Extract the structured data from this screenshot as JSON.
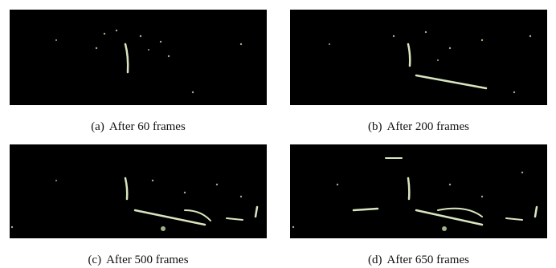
{
  "subfigures": [
    {
      "label": "(a)",
      "caption": "After 60 frames"
    },
    {
      "label": "(b)",
      "caption": "After 200 frames"
    },
    {
      "label": "(c)",
      "caption": "After 500 frames"
    },
    {
      "label": "(d)",
      "caption": "After 650 frames"
    }
  ]
}
